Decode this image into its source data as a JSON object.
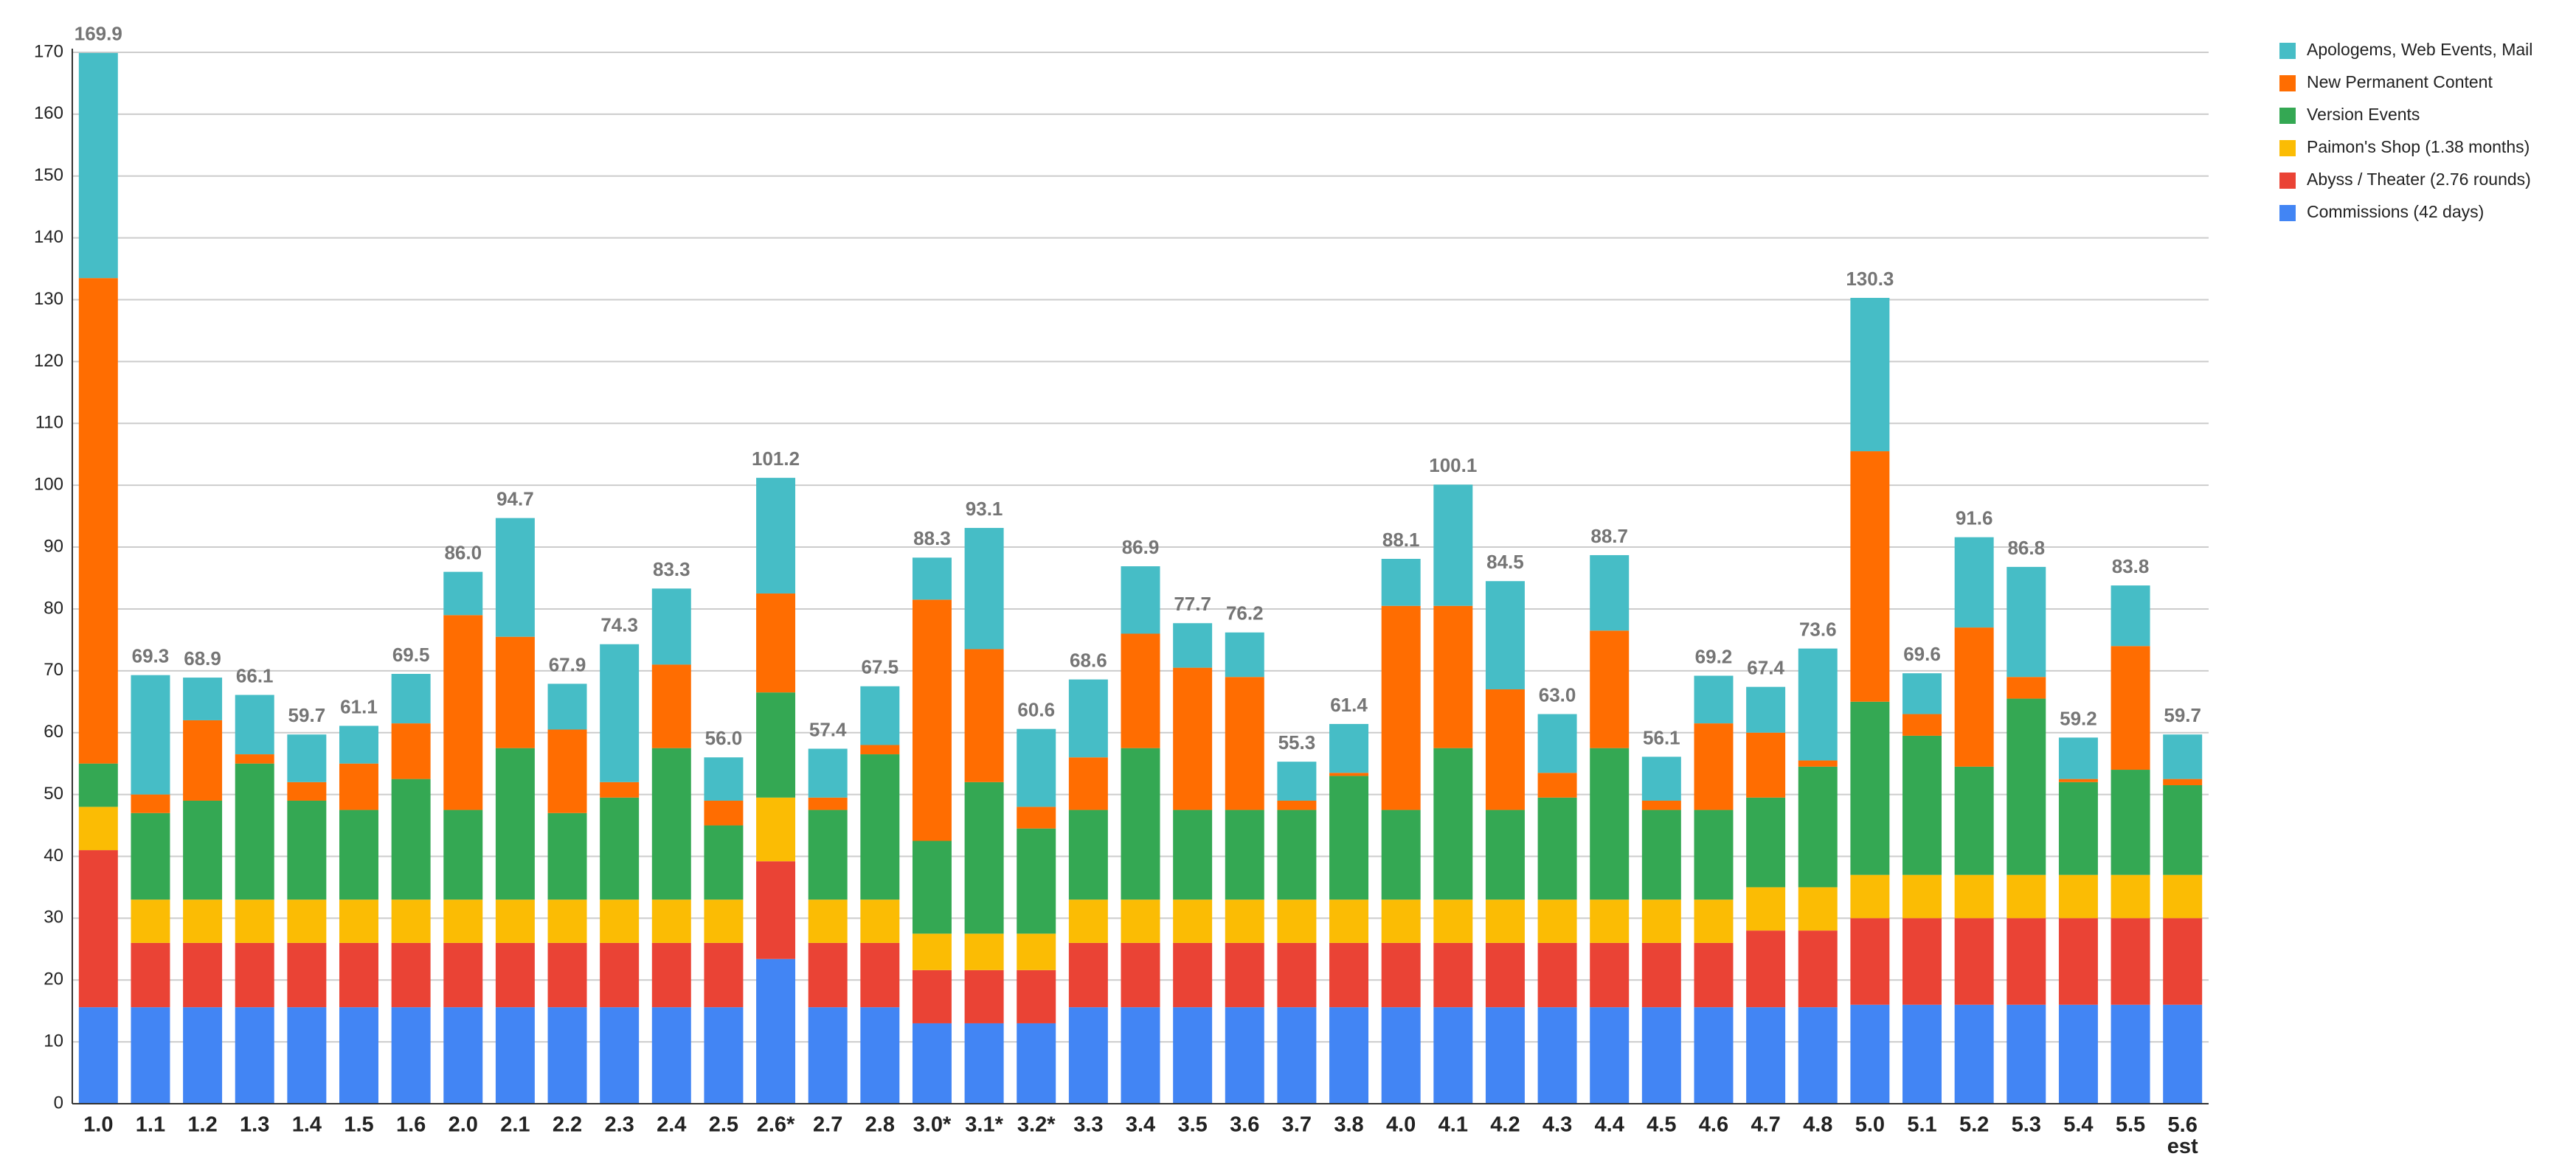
{
  "chart_data": {
    "type": "stacked_bar",
    "categories": [
      "1.0",
      "1.1",
      "1.2",
      "1.3",
      "1.4",
      "1.5",
      "1.6",
      "2.0",
      "2.1",
      "2.2",
      "2.3",
      "2.4",
      "2.5",
      "2.6*",
      "2.7",
      "2.8",
      "3.0*",
      "3.1*",
      "3.2*",
      "3.3",
      "3.4",
      "3.5",
      "3.6",
      "3.7",
      "3.8",
      "4.0",
      "4.1",
      "4.2",
      "4.3",
      "4.4",
      "4.5",
      "4.6",
      "4.7",
      "4.8",
      "5.0",
      "5.1",
      "5.2",
      "5.3",
      "5.4",
      "5.5",
      "5.6\nest"
    ],
    "series": [
      {
        "name": "Commissions (42 days)",
        "color": "#4285f4",
        "values": [
          15.6,
          15.6,
          15.6,
          15.6,
          15.6,
          15.6,
          15.6,
          15.6,
          15.6,
          15.6,
          15.6,
          15.6,
          15.6,
          23.4,
          15.6,
          15.6,
          13,
          13,
          13,
          15.6,
          15.6,
          15.6,
          15.6,
          15.6,
          15.6,
          15.6,
          15.6,
          15.6,
          15.6,
          15.6,
          15.6,
          15.6,
          15.6,
          15.6,
          16,
          16,
          16,
          16,
          16,
          16,
          16
        ]
      },
      {
        "name": "Abyss / Theater (2.76 rounds)",
        "color": "#ea4335",
        "values": [
          25.4,
          10.4,
          10.4,
          10.4,
          10.4,
          10.4,
          10.4,
          10.4,
          10.4,
          10.4,
          10.4,
          10.4,
          10.4,
          15.8,
          10.4,
          10.4,
          8.6,
          8.6,
          8.6,
          10.4,
          10.4,
          10.4,
          10.4,
          10.4,
          10.4,
          10.4,
          10.4,
          10.4,
          10.4,
          10.4,
          10.4,
          10.4,
          12.4,
          12.4,
          14,
          14,
          14,
          14,
          14,
          14,
          14
        ]
      },
      {
        "name": "Paimon's Shop (1.38 months)",
        "color": "#fbbc04",
        "values": [
          7,
          7,
          7,
          7,
          7,
          7,
          7,
          7,
          7,
          7,
          7,
          7,
          7,
          10.3,
          7,
          7,
          5.9,
          5.9,
          5.9,
          7,
          7,
          7,
          7,
          7,
          7,
          7,
          7,
          7,
          7,
          7,
          7,
          7,
          7,
          7,
          7,
          7,
          7,
          7,
          7,
          7,
          7
        ]
      },
      {
        "name": "Version Events",
        "color": "#34a853",
        "values": [
          7,
          14,
          16,
          22,
          16,
          14.5,
          19.5,
          14.5,
          24.5,
          14,
          16.5,
          24.5,
          12,
          17,
          14.5,
          23.5,
          15,
          24.5,
          17,
          14.5,
          24.5,
          14.5,
          14.5,
          14.5,
          20,
          14.5,
          24.5,
          14.5,
          16.5,
          24.5,
          14.5,
          14.5,
          14.5,
          19.5,
          28,
          22.5,
          17.5,
          28.5,
          15,
          17,
          14.5
        ]
      },
      {
        "name": "New Permanent Content",
        "color": "#ff6d01",
        "values": [
          78.5,
          3,
          13,
          1.5,
          3,
          7.5,
          9,
          31.5,
          18,
          13.5,
          2.5,
          13.5,
          4,
          16,
          2,
          1.5,
          39,
          21.5,
          3.5,
          8.5,
          18.5,
          23,
          21.5,
          1.5,
          0.5,
          33,
          23,
          19.5,
          4,
          19,
          1.5,
          14,
          10.5,
          1,
          40.5,
          3.5,
          22.5,
          3.5,
          0.5,
          20,
          1
        ]
      },
      {
        "name": "Apologems, Web Events, Mail",
        "color": "#46bdc6",
        "values": [
          36.4,
          19.3,
          6.9,
          9.6,
          7.7,
          6.1,
          8,
          7,
          19.2,
          7.4,
          22.3,
          12.3,
          7,
          18.7,
          7.9,
          9.5,
          6.8,
          19.6,
          12.6,
          12.6,
          10.9,
          7.2,
          7.2,
          6.3,
          7.9,
          7.6,
          19.6,
          17.5,
          9.5,
          12.2,
          7.1,
          7.7,
          7.4,
          18.1,
          24.8,
          6.6,
          14.6,
          17.8,
          6.7,
          9.8,
          7.2
        ]
      }
    ],
    "value_labels": [
      "169.9",
      "69.3",
      "68.9",
      "66.1",
      "59.7",
      "61.1",
      "69.5",
      "86.0",
      "94.7",
      "67.9",
      "74.3",
      "83.3",
      "56.0",
      "101.2",
      "57.4",
      "67.5",
      "88.3",
      "93.1",
      "60.6",
      "68.6",
      "86.9",
      "77.7",
      "76.2",
      "55.3",
      "61.4",
      "88.1",
      "100.1",
      "84.5",
      "63.0",
      "88.7",
      "56.1",
      "69.2",
      "67.4",
      "73.6",
      "130.3",
      "69.6",
      "91.6",
      "86.8",
      "59.2",
      "83.8",
      "59.7"
    ],
    "ylim": [
      0,
      170
    ],
    "yticks": [
      0,
      10,
      20,
      30,
      40,
      50,
      60,
      70,
      80,
      90,
      100,
      110,
      120,
      130,
      140,
      150,
      160,
      170
    ],
    "grid": true,
    "legend": "right"
  }
}
